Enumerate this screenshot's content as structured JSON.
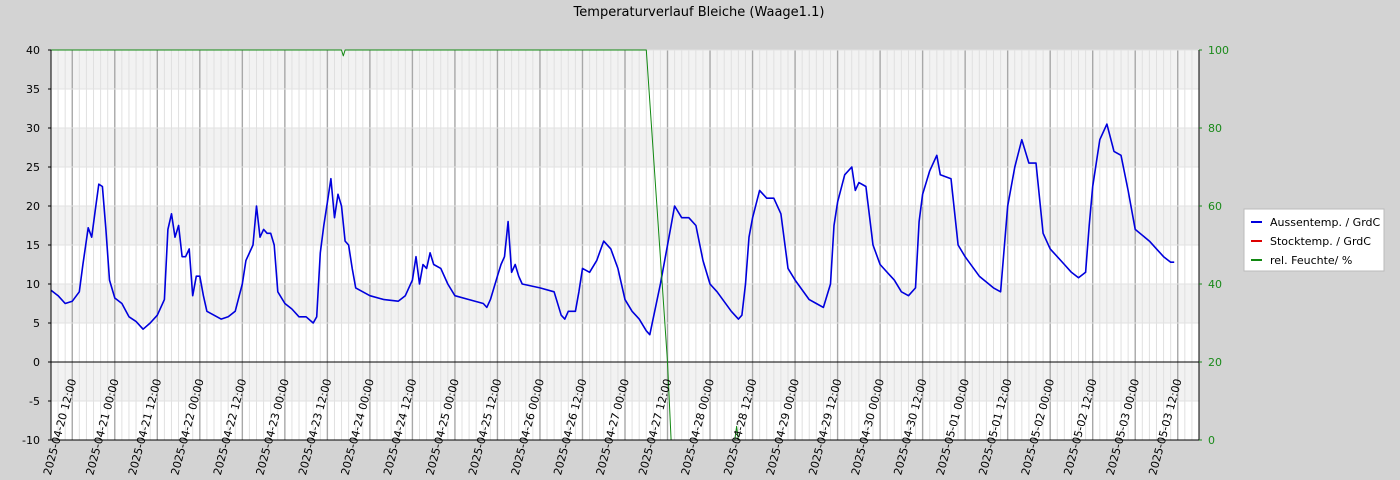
{
  "chart_data": {
    "type": "line",
    "title": "Temperaturverlauf Bleiche (Waage1.1)",
    "xlabel": "",
    "ylabel_left": "",
    "ylabel_right": "",
    "ylim_left": [
      -10,
      40
    ],
    "ylim_right": [
      0,
      100
    ],
    "yticks_left": [
      -10,
      -5,
      0,
      5,
      10,
      15,
      20,
      25,
      30,
      35,
      40
    ],
    "yticks_right": [
      0,
      20,
      40,
      60,
      80,
      100
    ],
    "x_range": [
      "2025-04-20 06:00",
      "2025-05-03 18:00"
    ],
    "x_tick_labels": [
      "2025-04-20 12:00",
      "2025-04-21 00:00",
      "2025-04-21 12:00",
      "2025-04-22 00:00",
      "2025-04-22 12:00",
      "2025-04-23 00:00",
      "2025-04-23 12:00",
      "2025-04-24 00:00",
      "2025-04-24 12:00",
      "2025-04-25 00:00",
      "2025-04-25 12:00",
      "2025-04-26 00:00",
      "2025-04-26 12:00",
      "2025-04-27 00:00",
      "2025-04-27 12:00",
      "2025-04-28 00:00",
      "2025-04-28 12:00",
      "2025-04-29 00:00",
      "2025-04-29 12:00",
      "2025-04-30 00:00",
      "2025-04-30 12:00",
      "2025-05-01 00:00",
      "2025-05-01 12:00",
      "2025-05-02 00:00",
      "2025-05-02 12:00",
      "2025-05-03 00:00",
      "2025-05-03 12:00"
    ],
    "grid": true,
    "legend_position": "right",
    "series": [
      {
        "name": "Aussentemp. / GrdC",
        "axis": "left",
        "color": "#0000dd",
        "points": [
          [
            "2025-04-20 06:00",
            9.2
          ],
          [
            "2025-04-20 08:00",
            8.5
          ],
          [
            "2025-04-20 10:00",
            7.5
          ],
          [
            "2025-04-20 12:00",
            7.8
          ],
          [
            "2025-04-20 14:00",
            9.0
          ],
          [
            "2025-04-20 15:00",
            12.5
          ],
          [
            "2025-04-20 16:30",
            17.2
          ],
          [
            "2025-04-20 17:30",
            16.0
          ],
          [
            "2025-04-20 18:30",
            19.5
          ],
          [
            "2025-04-20 19:30",
            22.8
          ],
          [
            "2025-04-20 20:30",
            22.5
          ],
          [
            "2025-04-20 21:30",
            17.0
          ],
          [
            "2025-04-20 22:30",
            10.5
          ],
          [
            "2025-04-21 00:00",
            8.2
          ],
          [
            "2025-04-21 02:00",
            7.5
          ],
          [
            "2025-04-21 04:00",
            5.8
          ],
          [
            "2025-04-21 06:00",
            5.2
          ],
          [
            "2025-04-21 08:00",
            4.2
          ],
          [
            "2025-04-21 10:00",
            5.0
          ],
          [
            "2025-04-21 12:00",
            6.0
          ],
          [
            "2025-04-21 14:00",
            8.0
          ],
          [
            "2025-04-21 15:00",
            17.0
          ],
          [
            "2025-04-21 16:00",
            19.0
          ],
          [
            "2025-04-21 17:00",
            16.0
          ],
          [
            "2025-04-21 18:00",
            17.5
          ],
          [
            "2025-04-21 19:00",
            13.5
          ],
          [
            "2025-04-21 20:00",
            13.5
          ],
          [
            "2025-04-21 21:00",
            14.5
          ],
          [
            "2025-04-21 22:00",
            8.5
          ],
          [
            "2025-04-21 23:00",
            11.0
          ],
          [
            "2025-04-22 00:00",
            11.0
          ],
          [
            "2025-04-22 01:00",
            8.5
          ],
          [
            "2025-04-22 02:00",
            6.5
          ],
          [
            "2025-04-22 04:00",
            6.0
          ],
          [
            "2025-04-22 06:00",
            5.5
          ],
          [
            "2025-04-22 08:00",
            5.8
          ],
          [
            "2025-04-22 10:00",
            6.5
          ],
          [
            "2025-04-22 12:00",
            10.0
          ],
          [
            "2025-04-22 13:00",
            13.0
          ],
          [
            "2025-04-22 15:00",
            15.0
          ],
          [
            "2025-04-22 16:00",
            20.0
          ],
          [
            "2025-04-22 17:00",
            16.0
          ],
          [
            "2025-04-22 18:00",
            17.0
          ],
          [
            "2025-04-22 19:00",
            16.5
          ],
          [
            "2025-04-22 20:00",
            16.5
          ],
          [
            "2025-04-22 21:00",
            15.0
          ],
          [
            "2025-04-22 22:00",
            9.0
          ],
          [
            "2025-04-23 00:00",
            7.5
          ],
          [
            "2025-04-23 02:00",
            6.8
          ],
          [
            "2025-04-23 04:00",
            5.8
          ],
          [
            "2025-04-23 06:00",
            5.8
          ],
          [
            "2025-04-23 08:00",
            5.0
          ],
          [
            "2025-04-23 09:00",
            5.8
          ],
          [
            "2025-04-23 10:00",
            14.0
          ],
          [
            "2025-04-23 11:00",
            17.5
          ],
          [
            "2025-04-23 12:00",
            20.5
          ],
          [
            "2025-04-23 13:00",
            23.5
          ],
          [
            "2025-04-23 14:00",
            18.5
          ],
          [
            "2025-04-23 15:00",
            21.5
          ],
          [
            "2025-04-23 16:00",
            20.0
          ],
          [
            "2025-04-23 17:00",
            15.5
          ],
          [
            "2025-04-23 18:00",
            15.0
          ],
          [
            "2025-04-23 19:00",
            12.0
          ],
          [
            "2025-04-23 20:00",
            9.5
          ],
          [
            "2025-04-24 00:00",
            8.5
          ],
          [
            "2025-04-24 04:00",
            8.0
          ],
          [
            "2025-04-24 08:00",
            7.8
          ],
          [
            "2025-04-24 10:00",
            8.5
          ],
          [
            "2025-04-24 12:00",
            10.5
          ],
          [
            "2025-04-24 13:00",
            13.5
          ],
          [
            "2025-04-24 14:00",
            10.0
          ],
          [
            "2025-04-24 15:00",
            12.5
          ],
          [
            "2025-04-24 16:00",
            12.0
          ],
          [
            "2025-04-24 17:00",
            14.0
          ],
          [
            "2025-04-24 18:00",
            12.5
          ],
          [
            "2025-04-24 20:00",
            12.0
          ],
          [
            "2025-04-24 22:00",
            10.0
          ],
          [
            "2025-04-25 00:00",
            8.5
          ],
          [
            "2025-04-25 04:00",
            8.0
          ],
          [
            "2025-04-25 08:00",
            7.5
          ],
          [
            "2025-04-25 09:00",
            7.0
          ],
          [
            "2025-04-25 10:00",
            8.0
          ],
          [
            "2025-04-25 12:00",
            11.0
          ],
          [
            "2025-04-25 13:00",
            12.5
          ],
          [
            "2025-04-25 14:00",
            13.5
          ],
          [
            "2025-04-25 15:00",
            18.0
          ],
          [
            "2025-04-25 16:00",
            11.5
          ],
          [
            "2025-04-25 17:00",
            12.5
          ],
          [
            "2025-04-25 18:00",
            11.0
          ],
          [
            "2025-04-25 19:00",
            10.0
          ],
          [
            "2025-04-26 00:00",
            9.5
          ],
          [
            "2025-04-26 04:00",
            9.0
          ],
          [
            "2025-04-26 06:00",
            6.0
          ],
          [
            "2025-04-26 07:00",
            5.5
          ],
          [
            "2025-04-26 08:00",
            6.5
          ],
          [
            "2025-04-26 10:00",
            6.5
          ],
          [
            "2025-04-26 11:00",
            9.0
          ],
          [
            "2025-04-26 12:00",
            12.0
          ],
          [
            "2025-04-26 14:00",
            11.5
          ],
          [
            "2025-04-26 16:00",
            13.0
          ],
          [
            "2025-04-26 18:00",
            15.5
          ],
          [
            "2025-04-26 20:00",
            14.5
          ],
          [
            "2025-04-26 22:00",
            12.0
          ],
          [
            "2025-04-27 00:00",
            8.0
          ],
          [
            "2025-04-27 02:00",
            6.5
          ],
          [
            "2025-04-27 04:00",
            5.5
          ],
          [
            "2025-04-27 06:00",
            4.0
          ],
          [
            "2025-04-27 07:00",
            3.5
          ],
          [
            "2025-04-27 10:00",
            10.0
          ],
          [
            "2025-04-27 13:00",
            17.5
          ],
          [
            "2025-04-27 14:00",
            20.0
          ],
          [
            "2025-04-27 16:00",
            18.5
          ],
          [
            "2025-04-27 18:00",
            18.5
          ],
          [
            "2025-04-27 20:00",
            17.5
          ],
          [
            "2025-04-27 22:00",
            13.0
          ],
          [
            "2025-04-28 00:00",
            10.0
          ],
          [
            "2025-04-28 02:00",
            9.0
          ],
          [
            "2025-04-28 06:00",
            6.5
          ],
          [
            "2025-04-28 08:00",
            5.5
          ],
          [
            "2025-04-28 09:00",
            6.0
          ],
          [
            "2025-04-28 10:00",
            10.0
          ],
          [
            "2025-04-28 11:00",
            16.0
          ],
          [
            "2025-04-28 12:00",
            18.5
          ],
          [
            "2025-04-28 14:00",
            22.0
          ],
          [
            "2025-04-28 16:00",
            21.0
          ],
          [
            "2025-04-28 18:00",
            21.0
          ],
          [
            "2025-04-28 20:00",
            19.0
          ],
          [
            "2025-04-28 22:00",
            12.0
          ],
          [
            "2025-04-29 00:00",
            10.5
          ],
          [
            "2025-04-29 04:00",
            8.0
          ],
          [
            "2025-04-29 06:00",
            7.5
          ],
          [
            "2025-04-29 08:00",
            7.0
          ],
          [
            "2025-04-29 10:00",
            10.0
          ],
          [
            "2025-04-29 11:00",
            17.5
          ],
          [
            "2025-04-29 12:00",
            20.5
          ],
          [
            "2025-04-29 14:00",
            24.0
          ],
          [
            "2025-04-29 16:00",
            25.0
          ],
          [
            "2025-04-29 17:00",
            22.0
          ],
          [
            "2025-04-29 18:00",
            23.0
          ],
          [
            "2025-04-29 20:00",
            22.5
          ],
          [
            "2025-04-29 22:00",
            15.0
          ],
          [
            "2025-04-30 00:00",
            12.5
          ],
          [
            "2025-04-30 04:00",
            10.5
          ],
          [
            "2025-04-30 06:00",
            9.0
          ],
          [
            "2025-04-30 08:00",
            8.5
          ],
          [
            "2025-04-30 10:00",
            9.5
          ],
          [
            "2025-04-30 11:00",
            18.0
          ],
          [
            "2025-04-30 12:00",
            21.5
          ],
          [
            "2025-04-30 14:00",
            24.5
          ],
          [
            "2025-04-30 16:00",
            26.5
          ],
          [
            "2025-04-30 17:00",
            24.0
          ],
          [
            "2025-04-30 20:00",
            23.5
          ],
          [
            "2025-04-30 22:00",
            15.0
          ],
          [
            "2025-05-01 00:00",
            13.5
          ],
          [
            "2025-05-01 04:00",
            11.0
          ],
          [
            "2025-05-01 08:00",
            9.5
          ],
          [
            "2025-05-01 10:00",
            9.0
          ],
          [
            "2025-05-01 12:00",
            20.0
          ],
          [
            "2025-05-01 14:00",
            25.0
          ],
          [
            "2025-05-01 16:00",
            28.5
          ],
          [
            "2025-05-01 18:00",
            25.5
          ],
          [
            "2025-05-01 20:00",
            25.5
          ],
          [
            "2025-05-01 22:00",
            16.5
          ],
          [
            "2025-05-02 00:00",
            14.5
          ],
          [
            "2025-05-02 04:00",
            12.5
          ],
          [
            "2025-05-02 06:00",
            11.5
          ],
          [
            "2025-05-02 08:00",
            10.8
          ],
          [
            "2025-05-02 10:00",
            11.5
          ],
          [
            "2025-05-02 11:00",
            17.5
          ],
          [
            "2025-05-02 12:00",
            22.5
          ],
          [
            "2025-05-02 14:00",
            28.5
          ],
          [
            "2025-05-02 16:00",
            30.5
          ],
          [
            "2025-05-02 18:00",
            27.0
          ],
          [
            "2025-05-02 20:00",
            26.5
          ],
          [
            "2025-05-02 22:00",
            22.0
          ],
          [
            "2025-05-03 00:00",
            17.0
          ],
          [
            "2025-05-03 04:00",
            15.5
          ],
          [
            "2025-05-03 06:00",
            14.5
          ],
          [
            "2025-05-03 08:00",
            13.5
          ],
          [
            "2025-05-03 10:00",
            12.8
          ],
          [
            "2025-05-03 11:00",
            12.8
          ]
        ]
      },
      {
        "name": "Stocktemp.  / GrdC",
        "axis": "left",
        "color": "#dd0000",
        "points": []
      },
      {
        "name": "rel. Feuchte/ %",
        "axis": "right",
        "color": "#118811",
        "points": [
          [
            "2025-04-20 06:00",
            100
          ],
          [
            "2025-04-23 16:00",
            100
          ],
          [
            "2025-04-23 16:30",
            98.5
          ],
          [
            "2025-04-23 17:00",
            100
          ],
          [
            "2025-04-27 06:00",
            100
          ],
          [
            "2025-04-27 12:00",
            20
          ],
          [
            "2025-04-27 13:00",
            0
          ],
          [
            "2025-04-28 07:00",
            0
          ],
          [
            "2025-04-28 07:30",
            3.5
          ],
          [
            "2025-04-28 08:00",
            0
          ],
          [
            "2025-05-03 11:00",
            0
          ]
        ]
      }
    ]
  }
}
